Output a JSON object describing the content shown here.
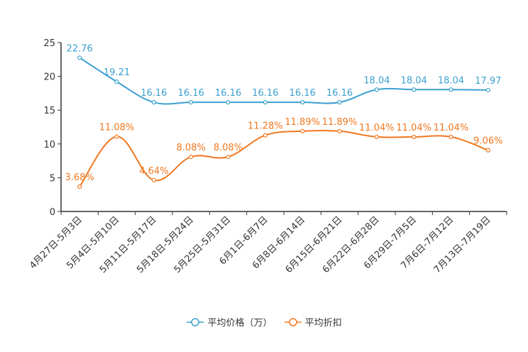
{
  "chart_data": {
    "type": "line",
    "title": "",
    "xlabel": "",
    "ylabel": "",
    "ylim": [
      0,
      25
    ],
    "yticks": [
      0,
      5,
      10,
      15,
      20,
      25
    ],
    "categories": [
      "4月27日-5月3日",
      "5月4日-5月10日",
      "5月11日-5月17日",
      "5月18日-5月24日",
      "5月25日-5月31日",
      "6月1日-6月7日",
      "6月8日-6月14日",
      "6月15日-6月21日",
      "6月22日-6月28日",
      "6月29日-7月5日",
      "7月6日-7月12日",
      "7月13日-7月19日"
    ],
    "series": [
      {
        "name": "平均价格（万）",
        "color": "#3ca0d0",
        "values": [
          22.76,
          19.21,
          16.16,
          16.16,
          16.16,
          16.16,
          16.16,
          16.16,
          18.04,
          18.04,
          18.04,
          17.97
        ],
        "labels": [
          "22.76",
          "19.21",
          "16.16",
          "16.16",
          "16.16",
          "16.16",
          "16.16",
          "16.16",
          "18.04",
          "18.04",
          "18.04",
          "17.97"
        ]
      },
      {
        "name": "平均折扣",
        "color": "#f07820",
        "values": [
          3.68,
          11.08,
          4.64,
          8.08,
          8.08,
          11.28,
          11.89,
          11.89,
          11.04,
          11.04,
          11.04,
          9.06
        ],
        "labels": [
          "3.68%",
          "11.08%",
          "4.64%",
          "8.08%",
          "8.08%",
          "11.28%",
          "11.89%",
          "11.89%",
          "11.04%",
          "11.04%",
          "11.04%",
          "9.06%"
        ]
      }
    ],
    "legend_position": "bottom"
  }
}
